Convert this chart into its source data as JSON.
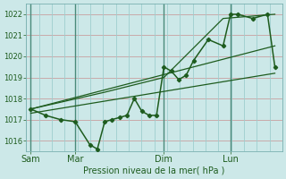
{
  "xlabel": "Pression niveau de la mer( hPa )",
  "ylim": [
    1015.5,
    1022.5
  ],
  "yticks": [
    1016,
    1017,
    1018,
    1019,
    1020,
    1021,
    1022
  ],
  "xtick_labels": [
    "Sam",
    "Mar",
    "Dim",
    "Lun"
  ],
  "xtick_positions": [
    0,
    3,
    9,
    13.5
  ],
  "bg_color": "#cce8e8",
  "line_color": "#1e5c1e",
  "grid_color_h": "#c8a0a0",
  "grid_color_v": "#9ecece",
  "data_x": [
    0,
    1,
    2,
    3,
    4,
    4.5,
    5,
    5.5,
    6,
    6.5,
    7,
    7.5,
    8,
    8.5,
    9,
    9.5,
    10,
    10.5,
    11,
    12,
    13,
    13.5,
    14,
    15,
    16,
    16.5
  ],
  "data_y": [
    1017.5,
    1017.2,
    1017.0,
    1016.9,
    1015.8,
    1015.6,
    1016.9,
    1017.0,
    1017.1,
    1017.2,
    1018.0,
    1017.4,
    1017.2,
    1017.2,
    1019.5,
    1019.3,
    1018.9,
    1019.1,
    1019.8,
    1020.8,
    1020.5,
    1022.0,
    1022.0,
    1021.8,
    1022.0,
    1019.5
  ],
  "trend1_x": [
    0,
    16.5
  ],
  "trend1_y": [
    1017.3,
    1019.2
  ],
  "trend2_x": [
    0,
    16.5
  ],
  "trend2_y": [
    1017.5,
    1020.5
  ],
  "trend3_x": [
    0,
    5,
    9,
    13,
    16.5
  ],
  "trend3_y": [
    1017.5,
    1018.3,
    1019.0,
    1021.8,
    1022.0
  ],
  "vline_positions": [
    0,
    3,
    9,
    13.5
  ],
  "xlim": [
    -0.3,
    17.0
  ]
}
